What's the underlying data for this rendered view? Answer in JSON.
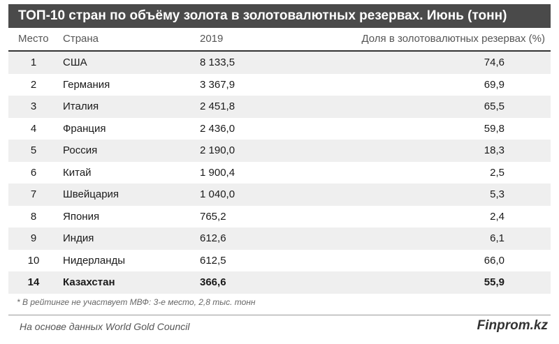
{
  "chart_data": {
    "type": "table",
    "title": "ТОП-10 стран по объёму золота в золотовалютных резервах. Июнь (тонн)",
    "columns": [
      "Место",
      "Страна",
      "2019",
      "Доля в золотовалютных резервах (%)"
    ],
    "rows": [
      {
        "rank": "1",
        "country": "США",
        "value": "8 133,5",
        "share": "74,6"
      },
      {
        "rank": "2",
        "country": "Германия",
        "value": "3 367,9",
        "share": "69,9"
      },
      {
        "rank": "3",
        "country": "Италия",
        "value": "2 451,8",
        "share": "65,5"
      },
      {
        "rank": "4",
        "country": "Франция",
        "value": "2 436,0",
        "share": "59,8"
      },
      {
        "rank": "5",
        "country": "Россия",
        "value": "2 190,0",
        "share": "18,3"
      },
      {
        "rank": "6",
        "country": "Китай",
        "value": "1 900,4",
        "share": "2,5"
      },
      {
        "rank": "7",
        "country": "Швейцария",
        "value": "1 040,0",
        "share": "5,3"
      },
      {
        "rank": "8",
        "country": "Япония",
        "value": "765,2",
        "share": "2,4"
      },
      {
        "rank": "9",
        "country": "Индия",
        "value": "612,6",
        "share": "6,1"
      },
      {
        "rank": "10",
        "country": "Нидерланды",
        "value": "612,5",
        "share": "66,0"
      },
      {
        "rank": "14",
        "country": "Казахстан",
        "value": "366,6",
        "share": "55,9",
        "highlighted": true
      }
    ],
    "footnote": "* В рейтинге не участвует МВФ: 3-е место, 2,8 тыс. тонн",
    "source": "На основе данных World Gold Council",
    "brand": "Finprom.kz"
  },
  "colors": {
    "title_background": "#4a4a4a",
    "title_text": "#ffffff",
    "row_shade": "#efefef",
    "header_rule": "#333333"
  }
}
